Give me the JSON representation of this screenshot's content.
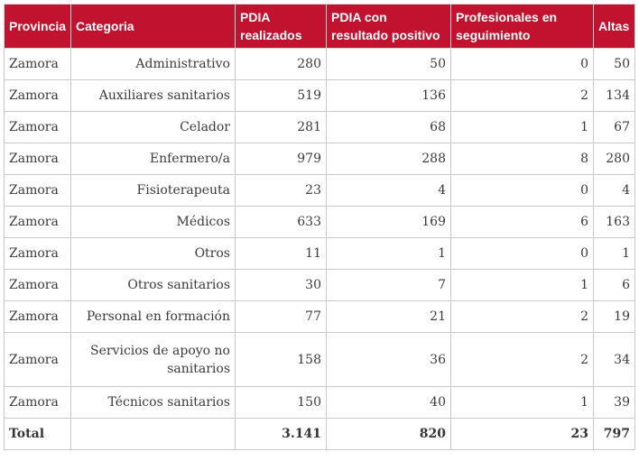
{
  "table": {
    "headers": [
      "Provincia",
      "Categoria",
      "PDIA realizados",
      "PDIA con resultado positivo",
      "Profesionales en seguimiento",
      "Altas"
    ],
    "rows": [
      [
        "Zamora",
        "Administrativo",
        "280",
        "50",
        "0",
        "50"
      ],
      [
        "Zamora",
        "Auxiliares sanitarios",
        "519",
        "136",
        "2",
        "134"
      ],
      [
        "Zamora",
        "Celador",
        "281",
        "68",
        "1",
        "67"
      ],
      [
        "Zamora",
        "Enfermero/a",
        "979",
        "288",
        "8",
        "280"
      ],
      [
        "Zamora",
        "Fisioterapeuta",
        "23",
        "4",
        "0",
        "4"
      ],
      [
        "Zamora",
        "Médicos",
        "633",
        "169",
        "6",
        "163"
      ],
      [
        "Zamora",
        "Otros",
        "11",
        "1",
        "0",
        "1"
      ],
      [
        "Zamora",
        "Otros sanitarios",
        "30",
        "7",
        "1",
        "6"
      ],
      [
        "Zamora",
        "Personal en formación",
        "77",
        "21",
        "2",
        "19"
      ],
      [
        "Zamora",
        "Servicios de apoyo no sanitarios",
        "158",
        "36",
        "2",
        "34"
      ],
      [
        "Zamora",
        "Técnicos sanitarios",
        "150",
        "40",
        "1",
        "39"
      ]
    ],
    "total": [
      "Total",
      "",
      "3.141",
      "820",
      "23",
      "797"
    ]
  },
  "colors": {
    "header_bg": "#c1122f",
    "header_text": "#ffffff",
    "border": "#c8c8c8"
  }
}
